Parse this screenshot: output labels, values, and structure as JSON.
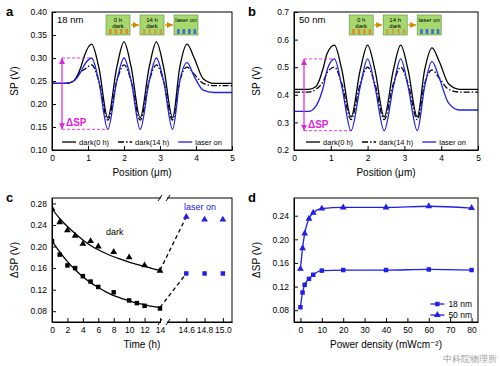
{
  "chart_data": [
    {
      "type": "line",
      "panel_label": "a",
      "title": "18 nm",
      "delta_label": "ΔSP",
      "inset_labels": [
        "0 h",
        "dark",
        "14 h",
        "dark",
        "laser on"
      ],
      "x_label": "Position (μm)",
      "y_label": "SP (V)",
      "x": [
        0,
        0.4,
        0.6,
        0.8,
        0.9,
        1.1,
        1.3,
        1.55,
        1.8,
        2.0,
        2.2,
        2.45,
        2.7,
        2.9,
        3.1,
        3.35,
        3.55,
        3.75,
        3.95,
        4.2,
        4.5,
        5.0
      ],
      "xlim": [
        0,
        5
      ],
      "xticks": [
        0,
        1,
        2,
        3,
        4,
        5
      ],
      "ylim": [
        0.1,
        0.4
      ],
      "yticks": [
        {
          "value": 0.1,
          "label": "0.10"
        },
        0.15,
        {
          "value": 0.2,
          "label": "0.20"
        },
        0.25,
        {
          "value": 0.3,
          "label": "0.30"
        },
        0.35,
        {
          "value": 0.4,
          "label": "0.40"
        }
      ],
      "legend": "bottom",
      "series": [
        {
          "name": "dark(0 h)",
          "color": "#000000",
          "line_style": "solid",
          "values": [
            0.245,
            0.245,
            0.25,
            0.28,
            0.305,
            0.33,
            0.28,
            0.17,
            0.28,
            0.335,
            0.28,
            0.17,
            0.28,
            0.335,
            0.28,
            0.17,
            0.28,
            0.33,
            0.3,
            0.255,
            0.245,
            0.245
          ]
        },
        {
          "name": "dark(14 h)",
          "color": "#000000",
          "line_style": "dashdot",
          "values": [
            0.245,
            0.245,
            0.25,
            0.27,
            0.275,
            0.285,
            0.25,
            0.165,
            0.25,
            0.285,
            0.25,
            0.165,
            0.25,
            0.285,
            0.25,
            0.165,
            0.25,
            0.28,
            0.265,
            0.245,
            0.24,
            0.24
          ]
        },
        {
          "name": "laser on",
          "color": "#2020e6",
          "line_style": "solid",
          "values": [
            0.245,
            0.245,
            0.25,
            0.27,
            0.285,
            0.3,
            0.25,
            0.145,
            0.25,
            0.3,
            0.25,
            0.145,
            0.25,
            0.3,
            0.25,
            0.145,
            0.25,
            0.29,
            0.26,
            0.23,
            0.225,
            0.225
          ]
        }
      ]
    },
    {
      "type": "line",
      "panel_label": "b",
      "title": "50 nm",
      "delta_label": "ΔSP",
      "inset_labels": [
        "0 h",
        "dark",
        "14 h",
        "dark",
        "laser on"
      ],
      "x_label": "Position (μm)",
      "y_label": "SP (V)",
      "x": [
        0,
        0.4,
        0.6,
        0.8,
        0.9,
        1.1,
        1.3,
        1.55,
        1.8,
        2.0,
        2.2,
        2.45,
        2.7,
        2.9,
        3.1,
        3.35,
        3.55,
        3.75,
        3.95,
        4.2,
        4.5,
        5.0
      ],
      "xlim": [
        0,
        5
      ],
      "xticks": [
        0,
        1,
        2,
        3,
        4,
        5
      ],
      "ylim": [
        0.2,
        0.7
      ],
      "yticks": [
        0.2,
        0.3,
        0.4,
        0.5,
        0.6,
        0.7
      ],
      "legend": "bottom",
      "series": [
        {
          "name": "dark(0 h)",
          "color": "#000000",
          "line_style": "solid",
          "values": [
            0.42,
            0.42,
            0.43,
            0.5,
            0.55,
            0.58,
            0.49,
            0.32,
            0.49,
            0.58,
            0.49,
            0.32,
            0.49,
            0.58,
            0.49,
            0.32,
            0.49,
            0.57,
            0.52,
            0.44,
            0.42,
            0.42
          ]
        },
        {
          "name": "dark(14 h)",
          "color": "#000000",
          "line_style": "dashdot",
          "values": [
            0.41,
            0.41,
            0.42,
            0.45,
            0.48,
            0.5,
            0.44,
            0.31,
            0.44,
            0.5,
            0.44,
            0.31,
            0.44,
            0.5,
            0.44,
            0.31,
            0.44,
            0.49,
            0.46,
            0.42,
            0.41,
            0.41
          ]
        },
        {
          "name": "laser on",
          "color": "#2020e6",
          "line_style": "solid",
          "values": [
            0.34,
            0.34,
            0.36,
            0.43,
            0.49,
            0.53,
            0.43,
            0.27,
            0.43,
            0.53,
            0.43,
            0.27,
            0.43,
            0.53,
            0.43,
            0.27,
            0.43,
            0.52,
            0.46,
            0.37,
            0.345,
            0.345
          ]
        }
      ]
    },
    {
      "type": "scatter",
      "panel_label": "c",
      "x_label": "Time (h)",
      "y_label": "ΔSP (V)",
      "annotations": [
        "dark",
        "laser on"
      ],
      "xlim": [
        0,
        15.1
      ],
      "xticks": [
        0,
        2,
        4,
        6,
        8,
        10,
        12,
        14,
        14.6,
        14.8,
        {
          "value": 15,
          "label": "15.0"
        }
      ],
      "ylim": [
        0.06,
        0.29
      ],
      "yticks": [
        0.08,
        0.12,
        0.16,
        {
          "value": 0.2,
          "label": "0.20"
        },
        0.24,
        0.28
      ],
      "series": [
        {
          "type": "scatter",
          "marker": "square",
          "color": "#000000",
          "x": [
            0,
            1,
            2,
            3,
            4,
            5,
            6,
            8,
            10,
            11,
            12,
            14
          ],
          "values": [
            0.21,
            0.185,
            0.165,
            0.16,
            0.145,
            0.135,
            0.125,
            0.115,
            0.1,
            0.095,
            0.09,
            0.085
          ]
        },
        {
          "type": "scatter",
          "marker": "triangle",
          "color": "#000000",
          "x": [
            0,
            1,
            2,
            3,
            4,
            5,
            6,
            8,
            10,
            12,
            14
          ],
          "values": [
            0.27,
            0.245,
            0.23,
            0.22,
            0.205,
            0.21,
            0.2,
            0.19,
            0.18,
            0.165,
            0.155
          ]
        },
        {
          "type": "line",
          "line_style": "solid",
          "color": "#000000",
          "x": [
            0,
            1,
            2,
            3,
            4,
            5,
            6,
            7,
            8,
            9,
            10,
            11,
            12,
            13,
            14
          ],
          "values": [
            0.21,
            0.19,
            0.172,
            0.157,
            0.144,
            0.133,
            0.124,
            0.116,
            0.109,
            0.104,
            0.099,
            0.095,
            0.092,
            0.089,
            0.087
          ]
        },
        {
          "type": "line",
          "line_style": "solid",
          "color": "#000000",
          "x": [
            0,
            1,
            2,
            3,
            4,
            5,
            6,
            7,
            8,
            9,
            10,
            11,
            12,
            13,
            14
          ],
          "values": [
            0.27,
            0.252,
            0.237,
            0.224,
            0.212,
            0.202,
            0.194,
            0.187,
            0.181,
            0.176,
            0.171,
            0.167,
            0.163,
            0.159,
            0.156
          ]
        },
        {
          "type": "line",
          "line_style": "dashed",
          "color": "#000000",
          "x": [
            14,
            14.6
          ],
          "values": [
            0.087,
            0.15
          ]
        },
        {
          "type": "line",
          "line_style": "dashed",
          "color": "#000000",
          "x": [
            14,
            14.6
          ],
          "values": [
            0.156,
            0.255
          ]
        },
        {
          "type": "scatter",
          "marker": "square",
          "color": "#2020e6",
          "x": [
            14.6,
            14.8,
            15
          ],
          "values": [
            0.15,
            0.15,
            0.15
          ]
        },
        {
          "type": "scatter",
          "marker": "triangle",
          "color": "#2020e6",
          "x": [
            14.6,
            14.8,
            15
          ],
          "values": [
            0.255,
            0.25,
            0.25
          ]
        }
      ]
    },
    {
      "type": "line",
      "panel_label": "d",
      "x_label": "Power density (mWcm⁻²)",
      "y_label": "ΔSP (V)",
      "annotations": [
        "中科院物理所"
      ],
      "xlim": [
        -3,
        83
      ],
      "xticks": [
        0,
        10,
        20,
        30,
        40,
        50,
        60,
        70,
        80
      ],
      "ylim": [
        0.06,
        0.27
      ],
      "yticks": [
        0.08,
        0.12,
        0.16,
        {
          "value": 0.2,
          "label": "0.20"
        },
        0.24
      ],
      "legend": "bottom right",
      "series": [
        {
          "name": "18 nm",
          "color": "#2020e6",
          "marker": "square",
          "line_style": "solid",
          "x": [
            0,
            1,
            2,
            4,
            6,
            10,
            20,
            40,
            60,
            80
          ],
          "values": [
            0.085,
            0.11,
            0.123,
            0.133,
            0.14,
            0.147,
            0.148,
            0.148,
            0.149,
            0.148
          ]
        },
        {
          "name": "50 nm",
          "color": "#2020e6",
          "marker": "triangle",
          "line_style": "solid",
          "x": [
            0,
            1,
            2,
            4,
            6,
            10,
            20,
            40,
            60,
            80
          ],
          "values": [
            0.15,
            0.185,
            0.21,
            0.235,
            0.245,
            0.252,
            0.254,
            0.254,
            0.256,
            0.253
          ]
        }
      ]
    }
  ]
}
